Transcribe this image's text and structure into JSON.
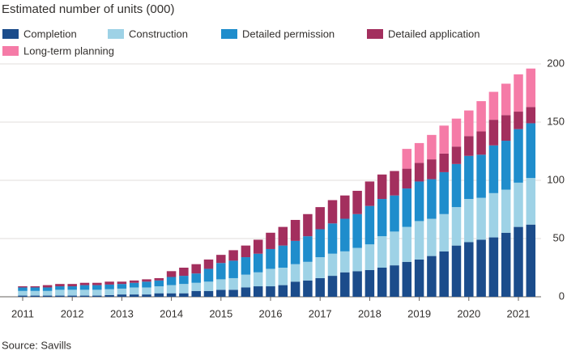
{
  "chart_data": {
    "type": "stacked_bar",
    "title": "Estimated number of units (000)",
    "source": "Source: Savills",
    "categories": [
      "2011",
      null,
      null,
      null,
      "2012",
      null,
      null,
      null,
      "2013",
      null,
      null,
      null,
      "2014",
      null,
      null,
      null,
      "2015",
      null,
      null,
      null,
      "2016",
      null,
      null,
      null,
      "2017",
      null,
      null,
      null,
      "2018",
      null,
      null,
      null,
      "2019",
      null,
      null,
      null,
      "2020",
      null,
      null,
      null,
      "2021",
      null
    ],
    "series": [
      {
        "name": "Completion",
        "color": "#1b4c8b",
        "values": [
          1,
          1,
          1,
          1,
          1,
          1,
          1,
          1.5,
          2,
          2,
          2,
          3,
          3,
          3,
          5,
          5,
          6,
          6,
          8,
          9,
          9,
          10,
          13,
          14,
          16,
          18,
          21,
          22,
          23,
          25,
          27,
          30,
          32,
          35,
          39,
          44,
          47,
          49,
          51,
          55,
          60,
          62
        ]
      },
      {
        "name": "Construction",
        "color": "#9ed2e6",
        "values": [
          4,
          4,
          4,
          5,
          5,
          5,
          5,
          5,
          5,
          6,
          6,
          6,
          7,
          8,
          7,
          8,
          9,
          10,
          11,
          12,
          15,
          15,
          15,
          16,
          18,
          19,
          18,
          20,
          22,
          27,
          29,
          30,
          33,
          32,
          32,
          33,
          37,
          36,
          38,
          37,
          38,
          40
        ]
      },
      {
        "name": "Detailed permission",
        "color": "#1f8dcc",
        "values": [
          3,
          3,
          3,
          3,
          3,
          4,
          4,
          4,
          4,
          4,
          5,
          5,
          7,
          7,
          8,
          11,
          14,
          15,
          15,
          16,
          17,
          19,
          20,
          22,
          24,
          26,
          28,
          29,
          33,
          32,
          31,
          33,
          34,
          34,
          36,
          37,
          37,
          37,
          41,
          42,
          46,
          47
        ]
      },
      {
        "name": "Detailed application",
        "color": "#a32f5e",
        "values": [
          1,
          1,
          2,
          2,
          2,
          2,
          2,
          2.5,
          2,
          2,
          2,
          2,
          5,
          7,
          8,
          8,
          7,
          9,
          10,
          12,
          14,
          16,
          18,
          19,
          19,
          20,
          20,
          20,
          21,
          21,
          21,
          17,
          16,
          17,
          16,
          15,
          17,
          20,
          22,
          22,
          15,
          14
        ]
      },
      {
        "name": "Long-term planning",
        "color": "#f57ba7",
        "values": [
          0,
          0,
          0,
          0,
          0,
          0,
          0,
          0,
          0,
          0,
          0,
          0,
          0,
          0,
          0,
          0,
          0,
          0,
          0,
          0,
          0,
          0,
          0,
          0,
          0,
          0,
          0,
          0,
          0,
          0,
          0,
          17,
          17,
          21,
          24,
          24,
          22,
          26,
          24,
          27,
          32,
          33
        ]
      }
    ],
    "ylim": [
      0,
      200
    ],
    "yticks": [
      0,
      50,
      100,
      150,
      200
    ],
    "grid": true
  }
}
